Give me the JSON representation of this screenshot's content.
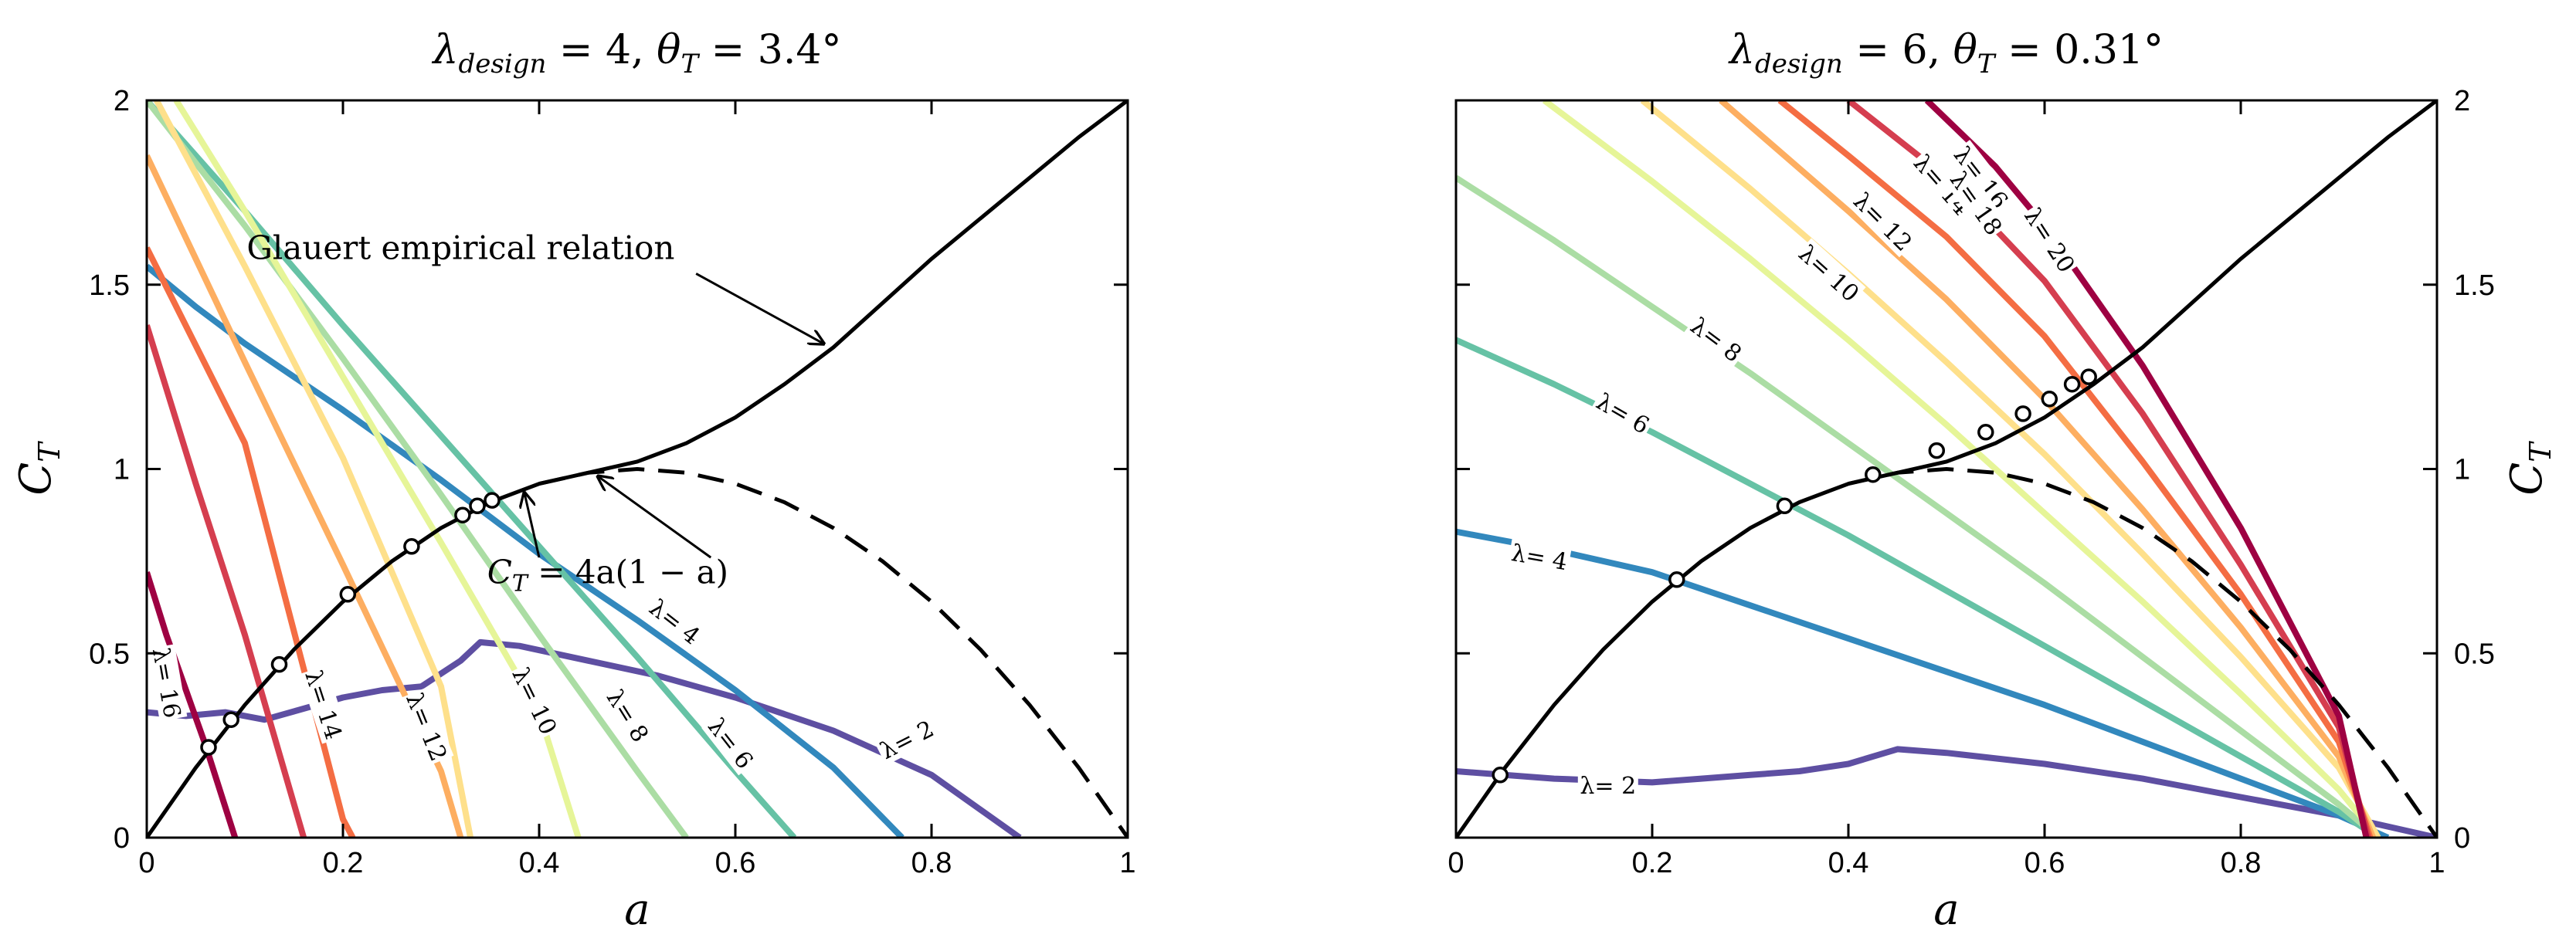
{
  "chart_data": [
    {
      "type": "line",
      "title": "λ_design = 4,  θ_T = 3.4°",
      "title_parts": {
        "lambda": "λ",
        "sub": "design",
        "eq": " = 4,   ",
        "theta": "θ",
        "tsub": "T",
        "rest": " = 3.4°"
      },
      "xlabel": "a",
      "ylabel": "C_T",
      "ylabel_parts": {
        "main": "C",
        "sub": "T"
      },
      "xlim": [
        0,
        1
      ],
      "ylim": [
        0,
        2
      ],
      "xticks": [
        "0",
        "0.2",
        "0.4",
        "0.6",
        "0.8",
        "1"
      ],
      "yticks": [
        "0",
        "0.5",
        "1",
        "1.5",
        "2"
      ],
      "y_axis_side": "left",
      "annotations": [
        {
          "text": "Glauert empirical relation",
          "points_to": [
            0.69,
            1.34
          ]
        },
        {
          "text": "C_T = 4a(1 − a)",
          "parts": {
            "main": "C",
            "sub": "T",
            "rest": " = 4a(1 − a)"
          },
          "points_to": [
            [
              0.385,
              0.935
            ],
            [
              0.46,
              0.98
            ]
          ]
        }
      ],
      "glauert_curve": {
        "x": [
          0,
          0.05,
          0.1,
          0.15,
          0.2,
          0.25,
          0.3,
          0.35,
          0.4,
          0.45,
          0.5,
          0.55,
          0.6,
          0.65,
          0.7,
          0.75,
          0.8,
          0.85,
          0.9,
          0.95,
          1.0
        ],
        "y": [
          0,
          0.19,
          0.36,
          0.51,
          0.64,
          0.75,
          0.84,
          0.91,
          0.96,
          0.99,
          1.02,
          1.07,
          1.14,
          1.23,
          1.33,
          1.45,
          1.57,
          1.68,
          1.79,
          1.9,
          2.0
        ]
      },
      "momentum_curve": {
        "x": [
          0.4,
          0.45,
          0.5,
          0.55,
          0.6,
          0.65,
          0.7,
          0.75,
          0.8,
          0.85,
          0.9,
          0.95,
          1.0
        ],
        "y": [
          0.96,
          0.99,
          1.0,
          0.99,
          0.96,
          0.91,
          0.84,
          0.75,
          0.64,
          0.51,
          0.36,
          0.19,
          0.0
        ]
      },
      "operating_points": {
        "x": [
          0.063,
          0.086,
          0.135,
          0.205,
          0.27,
          0.322,
          0.337,
          0.352
        ],
        "y": [
          0.245,
          0.32,
          0.47,
          0.66,
          0.79,
          0.875,
          0.9,
          0.915
        ]
      },
      "series": [
        {
          "name": "λ = 2",
          "label": "λ= 2",
          "color": "#5e4fa2",
          "x": [
            0,
            0.04,
            0.08,
            0.12,
            0.16,
            0.2,
            0.24,
            0.28,
            0.32,
            0.34,
            0.38,
            0.45,
            0.52,
            0.6,
            0.7,
            0.8,
            0.89
          ],
          "y": [
            0.34,
            0.33,
            0.34,
            0.32,
            0.35,
            0.38,
            0.4,
            0.41,
            0.48,
            0.53,
            0.52,
            0.48,
            0.44,
            0.38,
            0.29,
            0.17,
            0.0
          ],
          "label_at": [
            0.775,
            0.265
          ],
          "label_angle": -27
        },
        {
          "name": "λ = 4",
          "label": "λ= 4",
          "color": "#3288bd",
          "x": [
            0,
            0.05,
            0.1,
            0.2,
            0.3,
            0.4,
            0.5,
            0.6,
            0.7,
            0.77
          ],
          "y": [
            1.55,
            1.44,
            1.34,
            1.16,
            0.97,
            0.77,
            0.59,
            0.4,
            0.19,
            0.0
          ],
          "label_at": [
            0.538,
            0.585
          ],
          "label_angle": 38
        },
        {
          "name": "λ = 6",
          "label": "λ= 6",
          "color": "#66c2a5",
          "x": [
            0,
            0.1,
            0.2,
            0.3,
            0.4,
            0.5,
            0.6,
            0.66
          ],
          "y": [
            2.0,
            1.7,
            1.39,
            1.09,
            0.79,
            0.49,
            0.18,
            0.0
          ],
          "label_at": [
            0.595,
            0.255
          ],
          "label_angle": 52
        },
        {
          "name": "λ = 8",
          "label": "λ= 8",
          "color": "#abdda4",
          "x": [
            0,
            0.1,
            0.2,
            0.3,
            0.4,
            0.5,
            0.55
          ],
          "y": [
            2.0,
            1.66,
            1.3,
            0.93,
            0.55,
            0.18,
            0.0
          ],
          "label_at": [
            0.49,
            0.33
          ],
          "label_angle": 58
        },
        {
          "name": "λ = 10",
          "label": "λ= 10",
          "color": "#e6f598",
          "x": [
            0.03,
            0.1,
            0.2,
            0.3,
            0.4,
            0.44
          ],
          "y": [
            2.0,
            1.7,
            1.25,
            0.8,
            0.34,
            0.0
          ],
          "label_at": [
            0.395,
            0.37
          ],
          "label_angle": 64
        },
        {
          "name": "λ = 12",
          "label": "λ= 12",
          "color": "#fee08b",
          "x": [
            0.01,
            0.1,
            0.2,
            0.3,
            0.33
          ],
          "y": [
            2.0,
            1.55,
            1.03,
            0.41,
            0.0
          ],
          "label_at": [
            0.285,
            0.3
          ],
          "label_angle": 68
        },
        {
          "name": "λ = 12 (orange)",
          "color": "#fdae61",
          "x": [
            0,
            0.1,
            0.2,
            0.3,
            0.32
          ],
          "y": [
            1.85,
            1.29,
            0.74,
            0.18,
            0.0
          ]
        },
        {
          "name": "λ = 14",
          "label": "λ= 14",
          "color": "#f46d43",
          "x": [
            0,
            0.1,
            0.2,
            0.21
          ],
          "y": [
            1.6,
            1.07,
            0.05,
            0.0
          ],
          "label_at": [
            0.18,
            0.36
          ],
          "label_angle": 72
        },
        {
          "name": "λ = 14 (red)",
          "color": "#d53e4f",
          "x": [
            0,
            0.05,
            0.1,
            0.16
          ],
          "y": [
            1.39,
            0.96,
            0.55,
            0.0
          ]
        },
        {
          "name": "λ = 16",
          "label": "λ= 16",
          "color": "#9e0142",
          "x": [
            0,
            0.02,
            0.06,
            0.09
          ],
          "y": [
            0.72,
            0.55,
            0.25,
            0.0
          ],
          "label_at": [
            0.02,
            0.42
          ],
          "label_angle": 80
        }
      ]
    },
    {
      "type": "line",
      "title": "λ_design = 6,  θ_T = 0.31°",
      "title_parts": {
        "lambda": "λ",
        "sub": "design",
        "eq": " = 6,   ",
        "theta": "θ",
        "tsub": "T",
        "rest": " = 0.31°"
      },
      "xlabel": "a",
      "ylabel": "C_T",
      "ylabel_parts": {
        "main": "C",
        "sub": "T"
      },
      "xlim": [
        0,
        1
      ],
      "ylim": [
        0,
        2
      ],
      "xticks": [
        "0",
        "0.2",
        "0.4",
        "0.6",
        "0.8",
        "1"
      ],
      "yticks": [
        "0",
        "0.5",
        "1",
        "1.5",
        "2"
      ],
      "y_axis_side": "right",
      "annotations": [],
      "glauert_curve": {
        "x": [
          0,
          0.05,
          0.1,
          0.15,
          0.2,
          0.25,
          0.3,
          0.35,
          0.4,
          0.45,
          0.5,
          0.55,
          0.6,
          0.65,
          0.7,
          0.75,
          0.8,
          0.85,
          0.9,
          0.95,
          1.0
        ],
        "y": [
          0,
          0.19,
          0.36,
          0.51,
          0.64,
          0.75,
          0.84,
          0.91,
          0.96,
          0.99,
          1.02,
          1.07,
          1.14,
          1.23,
          1.33,
          1.45,
          1.57,
          1.68,
          1.79,
          1.9,
          2.0
        ]
      },
      "momentum_curve": {
        "x": [
          0.4,
          0.45,
          0.5,
          0.55,
          0.6,
          0.65,
          0.7,
          0.75,
          0.8,
          0.85,
          0.9,
          0.95,
          1.0
        ],
        "y": [
          0.96,
          0.99,
          1.0,
          0.99,
          0.96,
          0.91,
          0.84,
          0.75,
          0.64,
          0.51,
          0.36,
          0.19,
          0.0
        ]
      },
      "operating_points": {
        "x": [
          0.045,
          0.225,
          0.335,
          0.425,
          0.49,
          0.54,
          0.578,
          0.605,
          0.628,
          0.645
        ],
        "y": [
          0.17,
          0.7,
          0.9,
          0.985,
          1.05,
          1.1,
          1.15,
          1.19,
          1.23,
          1.25
        ]
      },
      "series": [
        {
          "name": "λ = 2",
          "label": "λ= 2",
          "color": "#5e4fa2",
          "x": [
            0,
            0.1,
            0.2,
            0.25,
            0.3,
            0.35,
            0.4,
            0.45,
            0.5,
            0.6,
            0.7,
            0.8,
            0.9,
            1.0
          ],
          "y": [
            0.18,
            0.16,
            0.15,
            0.16,
            0.17,
            0.18,
            0.2,
            0.24,
            0.23,
            0.2,
            0.16,
            0.11,
            0.06,
            0.0
          ],
          "label_at": [
            0.155,
            0.14
          ],
          "label_angle": 0
        },
        {
          "name": "λ = 4",
          "label": "λ= 4",
          "color": "#3288bd",
          "x": [
            0,
            0.1,
            0.2,
            0.3,
            0.4,
            0.5,
            0.6,
            0.7,
            0.8,
            0.9,
            0.95
          ],
          "y": [
            0.83,
            0.78,
            0.72,
            0.63,
            0.54,
            0.45,
            0.36,
            0.26,
            0.16,
            0.06,
            0.0
          ],
          "label_at": [
            0.085,
            0.76
          ],
          "label_angle": 10
        },
        {
          "name": "λ = 6",
          "label": "λ= 6",
          "color": "#66c2a5",
          "x": [
            0,
            0.1,
            0.2,
            0.3,
            0.4,
            0.5,
            0.6,
            0.7,
            0.8,
            0.9,
            0.94
          ],
          "y": [
            1.35,
            1.23,
            1.1,
            0.96,
            0.82,
            0.67,
            0.52,
            0.37,
            0.22,
            0.07,
            0.0
          ],
          "label_at": [
            0.17,
            1.15
          ],
          "label_angle": 30
        },
        {
          "name": "λ = 8",
          "label": "λ= 8",
          "color": "#abdda4",
          "x": [
            0,
            0.1,
            0.2,
            0.3,
            0.4,
            0.5,
            0.6,
            0.7,
            0.8,
            0.9,
            0.94
          ],
          "y": [
            1.79,
            1.62,
            1.44,
            1.26,
            1.07,
            0.88,
            0.69,
            0.49,
            0.29,
            0.09,
            0.0
          ],
          "label_at": [
            0.265,
            1.35
          ],
          "label_angle": 37
        },
        {
          "name": "λ = 10",
          "label": "λ= 10",
          "color": "#e6f598",
          "x": [
            0.09,
            0.2,
            0.3,
            0.4,
            0.5,
            0.6,
            0.7,
            0.8,
            0.9,
            0.94
          ],
          "y": [
            2.0,
            1.78,
            1.57,
            1.35,
            1.12,
            0.88,
            0.64,
            0.39,
            0.13,
            0.0
          ],
          "label_at": [
            0.38,
            1.53
          ],
          "label_angle": 42
        },
        {
          "name": "λ = 12",
          "label": "λ= 12",
          "color": "#fee08b",
          "x": [
            0.19,
            0.3,
            0.4,
            0.5,
            0.6,
            0.7,
            0.8,
            0.9,
            0.94
          ],
          "y": [
            2.0,
            1.76,
            1.53,
            1.29,
            1.04,
            0.77,
            0.49,
            0.19,
            0.0
          ],
          "label_at": [
            0.435,
            1.67
          ],
          "label_angle": 45
        },
        {
          "name": "λ = 14",
          "label": "λ= 14",
          "color": "#fdae61",
          "x": [
            0.27,
            0.4,
            0.5,
            0.6,
            0.7,
            0.8,
            0.9,
            0.935
          ],
          "y": [
            2.0,
            1.7,
            1.46,
            1.19,
            0.89,
            0.57,
            0.22,
            0.0
          ],
          "label_at": [
            0.495,
            1.77
          ],
          "label_angle": 49
        },
        {
          "name": "λ = 16",
          "label": "λ= 16",
          "color": "#f46d43",
          "x": [
            0.33,
            0.4,
            0.5,
            0.6,
            0.7,
            0.8,
            0.9,
            0.932
          ],
          "y": [
            2.0,
            1.85,
            1.63,
            1.36,
            1.02,
            0.66,
            0.26,
            0.0
          ],
          "label_at": [
            0.535,
            1.79
          ],
          "label_angle": 52
        },
        {
          "name": "λ = 18",
          "label": "λ= 18",
          "color": "#d53e4f",
          "x": [
            0.4,
            0.5,
            0.6,
            0.7,
            0.8,
            0.9,
            0.93
          ],
          "y": [
            2.0,
            1.79,
            1.51,
            1.15,
            0.74,
            0.3,
            0.0
          ],
          "label_at": [
            0.53,
            1.72
          ],
          "label_angle": 55
        },
        {
          "name": "λ = 20",
          "label": "λ= 20",
          "color": "#9e0142",
          "x": [
            0.48,
            0.55,
            0.6,
            0.7,
            0.8,
            0.9,
            0.928
          ],
          "y": [
            2.0,
            1.82,
            1.66,
            1.28,
            0.84,
            0.33,
            0.0
          ],
          "label_at": [
            0.605,
            1.62
          ],
          "label_angle": 57
        }
      ]
    }
  ]
}
